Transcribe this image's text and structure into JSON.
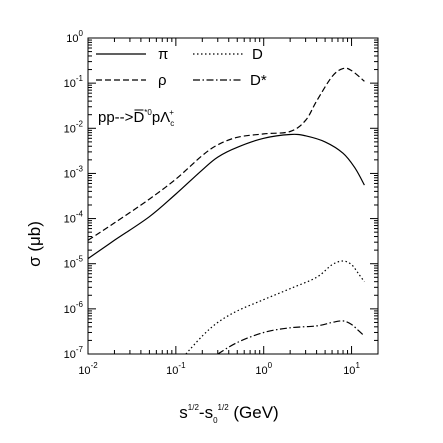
{
  "chart_data": {
    "type": "line",
    "title": "",
    "xlabel": {
      "base": "s",
      "sup1": "1/2",
      "mid": "-s",
      "sub": "0",
      "sup2": "1/2",
      "unit": " (GeV)"
    },
    "ylabel": {
      "sym": "σ",
      "unit": " (μb)"
    },
    "xscale": "log",
    "yscale": "log",
    "xlim": [
      0.01,
      20
    ],
    "ylim": [
      1e-07,
      1
    ],
    "xticks": [
      {
        "value": 0.01,
        "base": "10",
        "exp": "-2"
      },
      {
        "value": 0.1,
        "base": "10",
        "exp": "-1"
      },
      {
        "value": 1,
        "base": "10",
        "exp": "0"
      },
      {
        "value": 10,
        "base": "10",
        "exp": "1"
      }
    ],
    "yticks": [
      {
        "value": 1e-07,
        "base": "10",
        "exp": "-7"
      },
      {
        "value": 1e-06,
        "base": "10",
        "exp": "-6"
      },
      {
        "value": 1e-05,
        "base": "10",
        "exp": "-5"
      },
      {
        "value": 0.0001,
        "base": "10",
        "exp": "-4"
      },
      {
        "value": 0.001,
        "base": "10",
        "exp": "-3"
      },
      {
        "value": 0.01,
        "base": "10",
        "exp": "-2"
      },
      {
        "value": 0.1,
        "base": "10",
        "exp": "-1"
      },
      {
        "value": 1,
        "base": "10",
        "exp": "0"
      }
    ],
    "annotation": {
      "pre": "pp-->",
      "bar": "D",
      "sup1": "*0",
      "mid": "pΛ",
      "sub": "c",
      "sup2": "+"
    },
    "legend_placement": "top-left",
    "grid": false,
    "series": [
      {
        "name": "π",
        "dash": "solid",
        "points": [
          [
            0.01,
            1.3e-05
          ],
          [
            0.02,
            3.3e-05
          ],
          [
            0.05,
            0.00011
          ],
          [
            0.1,
            0.00035
          ],
          [
            0.2,
            0.0012
          ],
          [
            0.3,
            0.0023
          ],
          [
            0.5,
            0.0038
          ],
          [
            1,
            0.006
          ],
          [
            2,
            0.0073
          ],
          [
            3,
            0.0068
          ],
          [
            5,
            0.005
          ],
          [
            8,
            0.0028
          ],
          [
            11,
            0.0013
          ],
          [
            14,
            0.00055
          ]
        ]
      },
      {
        "name": "ρ",
        "dash": "dashed",
        "points": [
          [
            0.01,
            3.3e-05
          ],
          [
            0.02,
            8e-05
          ],
          [
            0.05,
            0.00027
          ],
          [
            0.1,
            0.00075
          ],
          [
            0.2,
            0.0025
          ],
          [
            0.3,
            0.0043
          ],
          [
            0.5,
            0.0063
          ],
          [
            1,
            0.0075
          ],
          [
            2,
            0.0085
          ],
          [
            3,
            0.015
          ],
          [
            4,
            0.04
          ],
          [
            6,
            0.14
          ],
          [
            8,
            0.21
          ],
          [
            10,
            0.19
          ],
          [
            14,
            0.11
          ]
        ]
      },
      {
        "name": "D",
        "dash": "dotted",
        "points": [
          [
            0.13,
            1e-07
          ],
          [
            0.2,
            2.5e-07
          ],
          [
            0.3,
            5e-07
          ],
          [
            0.5,
            9e-07
          ],
          [
            1,
            1.6e-06
          ],
          [
            2,
            2.8e-06
          ],
          [
            4,
            5e-06
          ],
          [
            6,
            9.5e-06
          ],
          [
            8,
            1.15e-05
          ],
          [
            10,
            9.5e-06
          ],
          [
            12,
            6e-06
          ],
          [
            14,
            4e-06
          ]
        ]
      },
      {
        "name": "D*",
        "dash": "dashdot",
        "points": [
          [
            0.3,
            1e-07
          ],
          [
            0.5,
            1.8e-07
          ],
          [
            1,
            3e-07
          ],
          [
            2,
            3.8e-07
          ],
          [
            4,
            4.2e-07
          ],
          [
            6,
            5e-07
          ],
          [
            8,
            5.4e-07
          ],
          [
            10,
            4.5e-07
          ],
          [
            12,
            3.3e-07
          ],
          [
            14,
            2.5e-07
          ]
        ]
      }
    ]
  }
}
